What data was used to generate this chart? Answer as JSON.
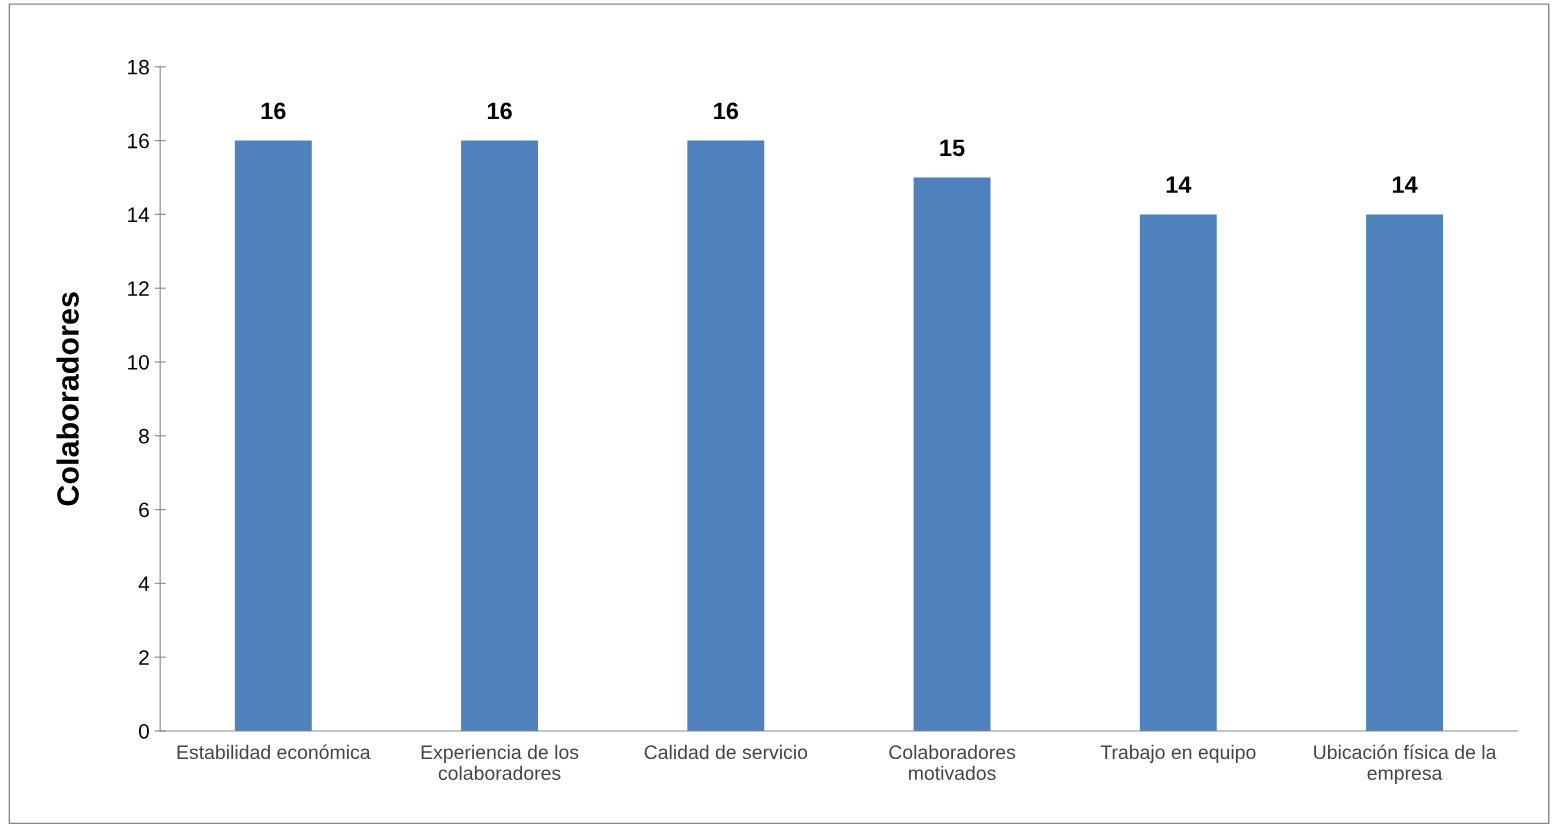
{
  "chart_data": {
    "type": "bar",
    "ylabel": "Colaboradores",
    "categories": [
      "Estabilidad económica",
      "Experiencia de los colaboradores",
      "Calidad de servicio",
      "Colaboradores motivados",
      "Trabajo en equipo",
      "Ubicación física de la empresa"
    ],
    "values": [
      16,
      16,
      16,
      15,
      14,
      14
    ],
    "color": "#4f81bd",
    "ylim": [
      0,
      18
    ],
    "yticks": [
      0,
      2,
      4,
      6,
      8,
      10,
      12,
      14,
      16,
      18
    ],
    "grid": false,
    "legend": false,
    "data_labels": true
  }
}
